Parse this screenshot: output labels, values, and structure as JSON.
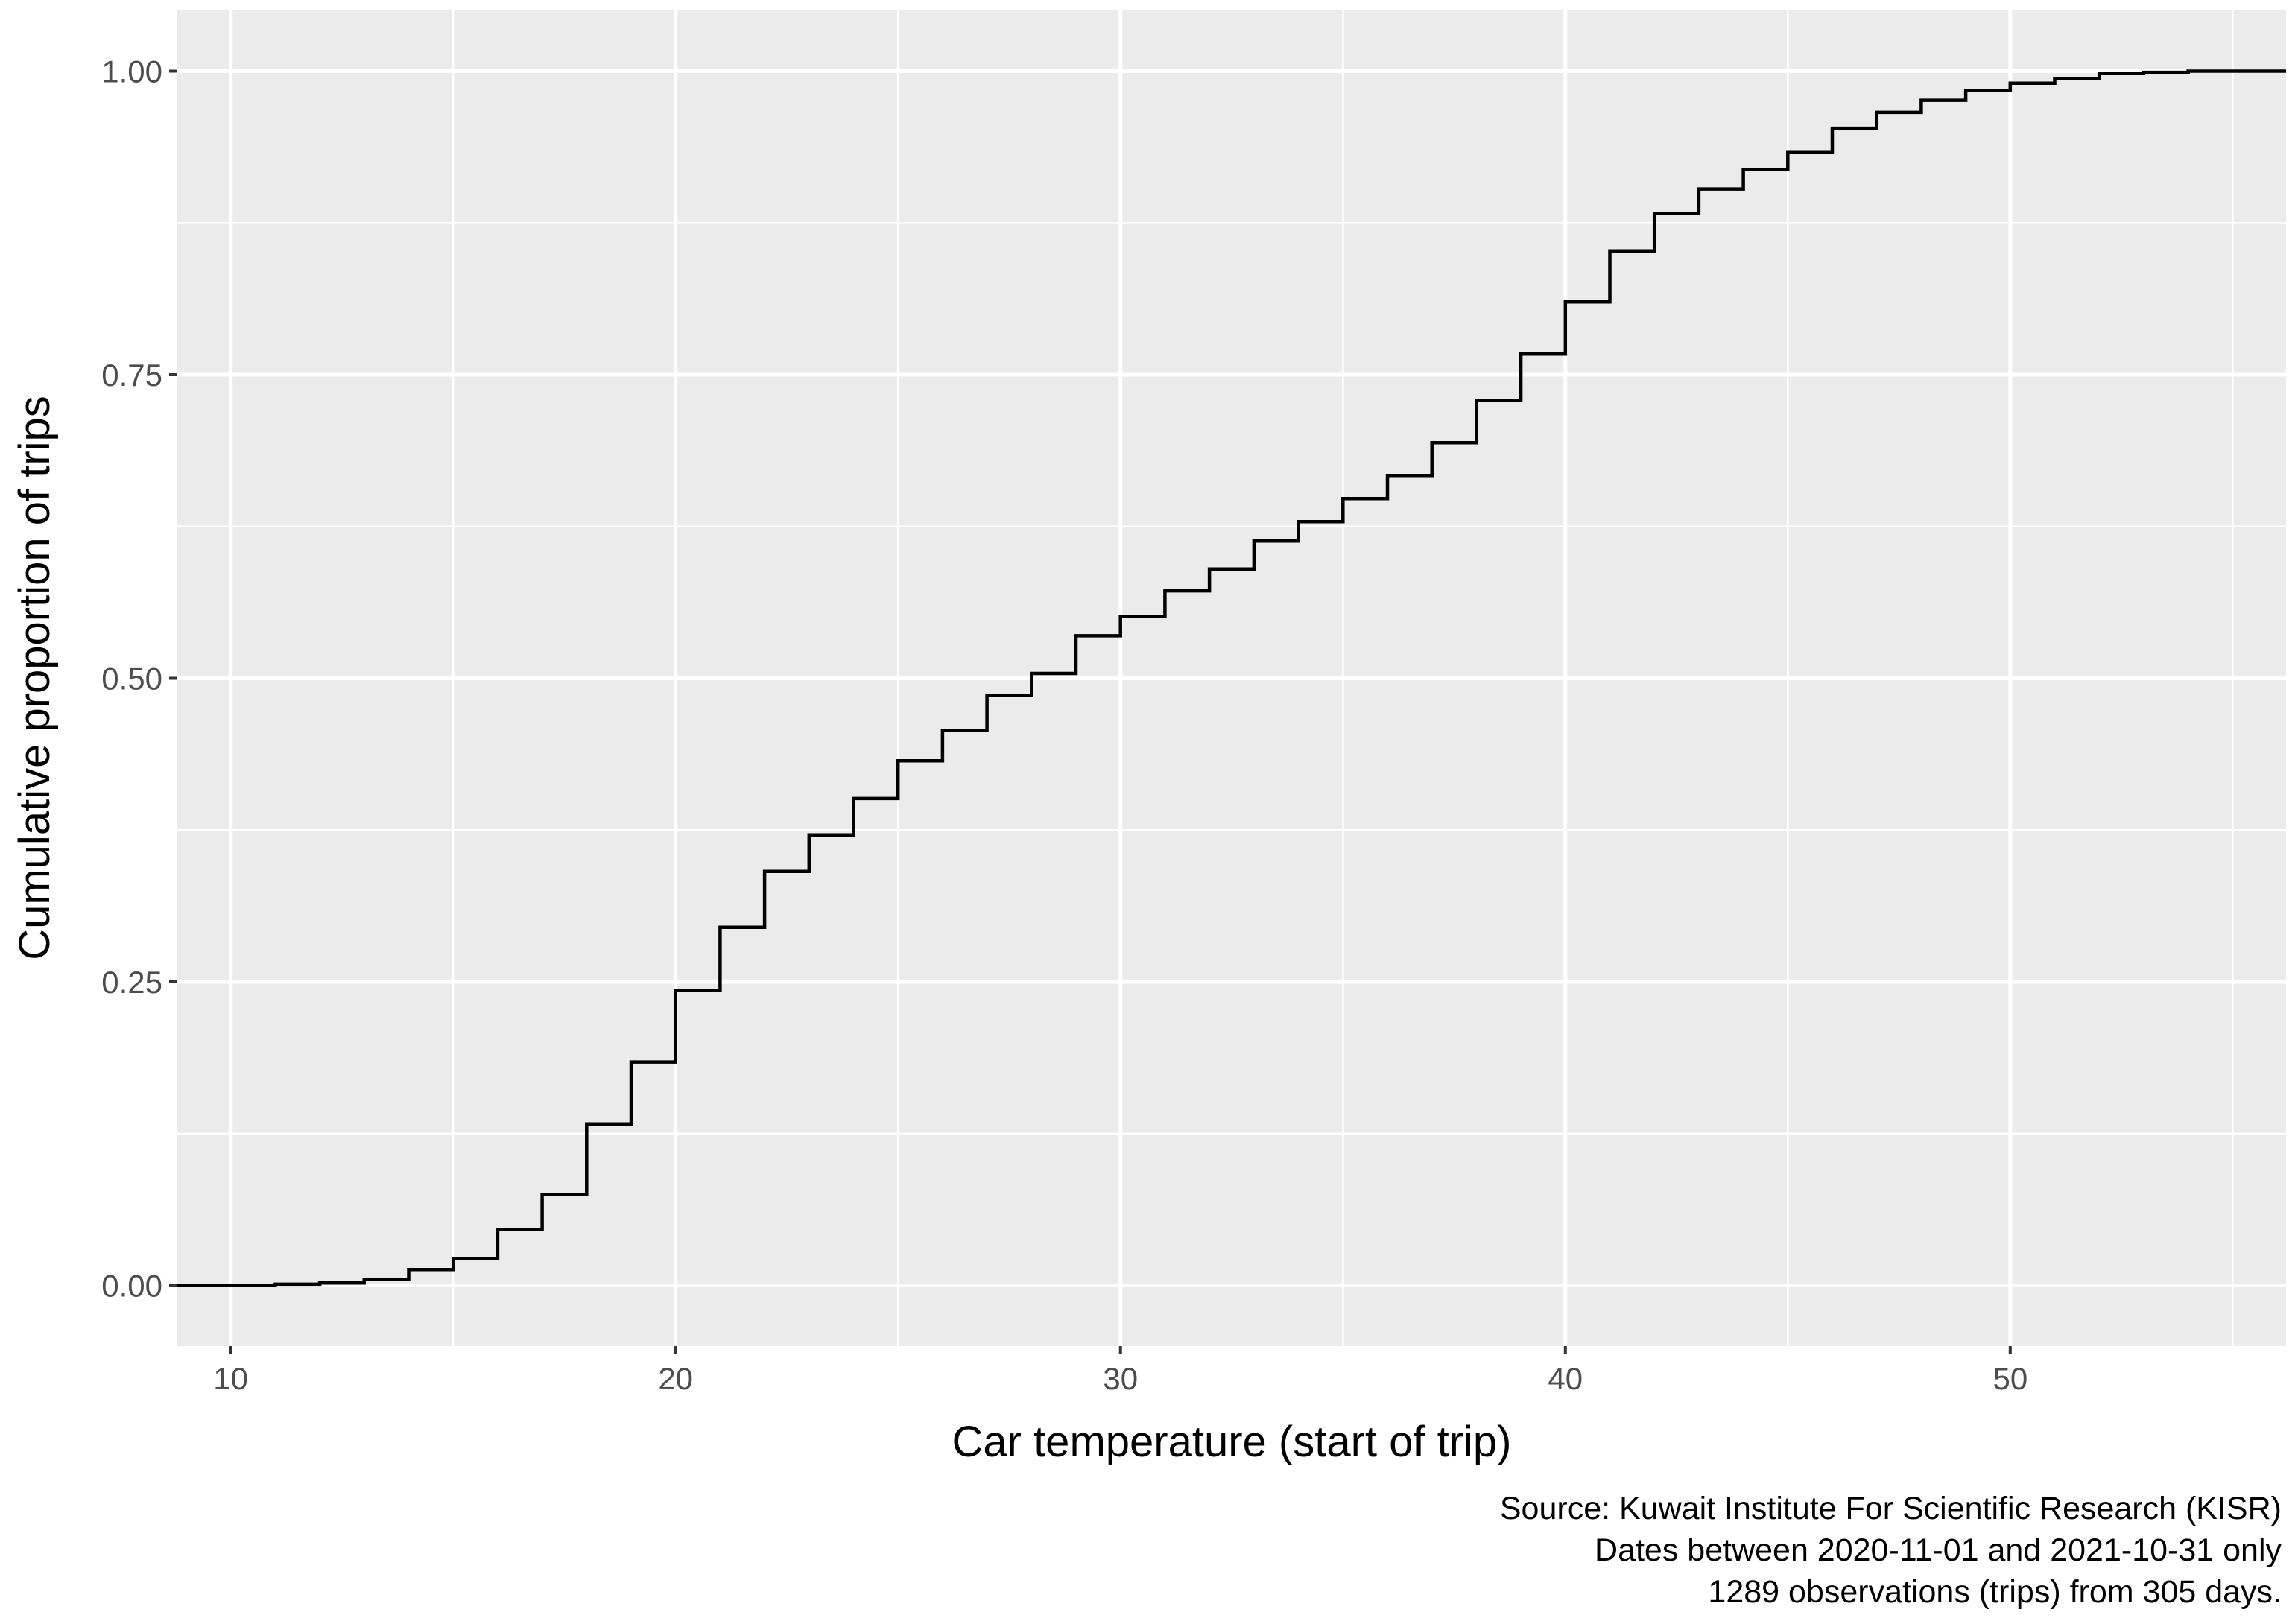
{
  "chart_data": {
    "type": "line",
    "title": "",
    "xlabel": "Car temperature (start of trip)",
    "ylabel": "Cumulative proportion of trips",
    "xlim": [
      8.8,
      56.2
    ],
    "ylim": [
      -0.05,
      1.05
    ],
    "x_ticks": [
      10,
      20,
      30,
      40,
      50
    ],
    "y_ticks": [
      0,
      0.25,
      0.5,
      0.75,
      1
    ],
    "x_tick_labels": [
      "10",
      "20",
      "30",
      "40",
      "50"
    ],
    "y_tick_labels": [
      "0.00",
      "0.25",
      "0.50",
      "0.75",
      "1.00"
    ],
    "grid": true,
    "legend": "none",
    "colors": {
      "panel_background": "#ebebeb",
      "gridline": "#ffffff",
      "line": "#000000",
      "tick_text": "#4d4d4d"
    },
    "caption": [
      "Source: Kuwait Institute For Scientific Research (KISR)",
      "Dates between 2020-11-01 and 2021-10-31 only",
      "1289 observations (trips) from 305 days."
    ],
    "series": [
      {
        "step": "post",
        "x": [
          8.8,
          11,
          12,
          13,
          14,
          15,
          16,
          17,
          18,
          19,
          20,
          21,
          22,
          23,
          24,
          25,
          26,
          27,
          28,
          29,
          30,
          31,
          32,
          33,
          34,
          35,
          36,
          37,
          38,
          39,
          40,
          41,
          42,
          43,
          44,
          45,
          46,
          47,
          48,
          49,
          50,
          51,
          52,
          53,
          54,
          56.2
        ],
        "y": [
          0,
          0.001,
          0.002,
          0.005,
          0.013,
          0.022,
          0.046,
          0.075,
          0.133,
          0.184,
          0.243,
          0.295,
          0.341,
          0.371,
          0.401,
          0.432,
          0.457,
          0.486,
          0.504,
          0.535,
          0.551,
          0.572,
          0.59,
          0.613,
          0.629,
          0.648,
          0.667,
          0.694,
          0.729,
          0.767,
          0.81,
          0.852,
          0.883,
          0.903,
          0.919,
          0.933,
          0.953,
          0.966,
          0.976,
          0.984,
          0.99,
          0.994,
          0.998,
          0.999,
          1.0,
          1.0
        ]
      }
    ]
  }
}
